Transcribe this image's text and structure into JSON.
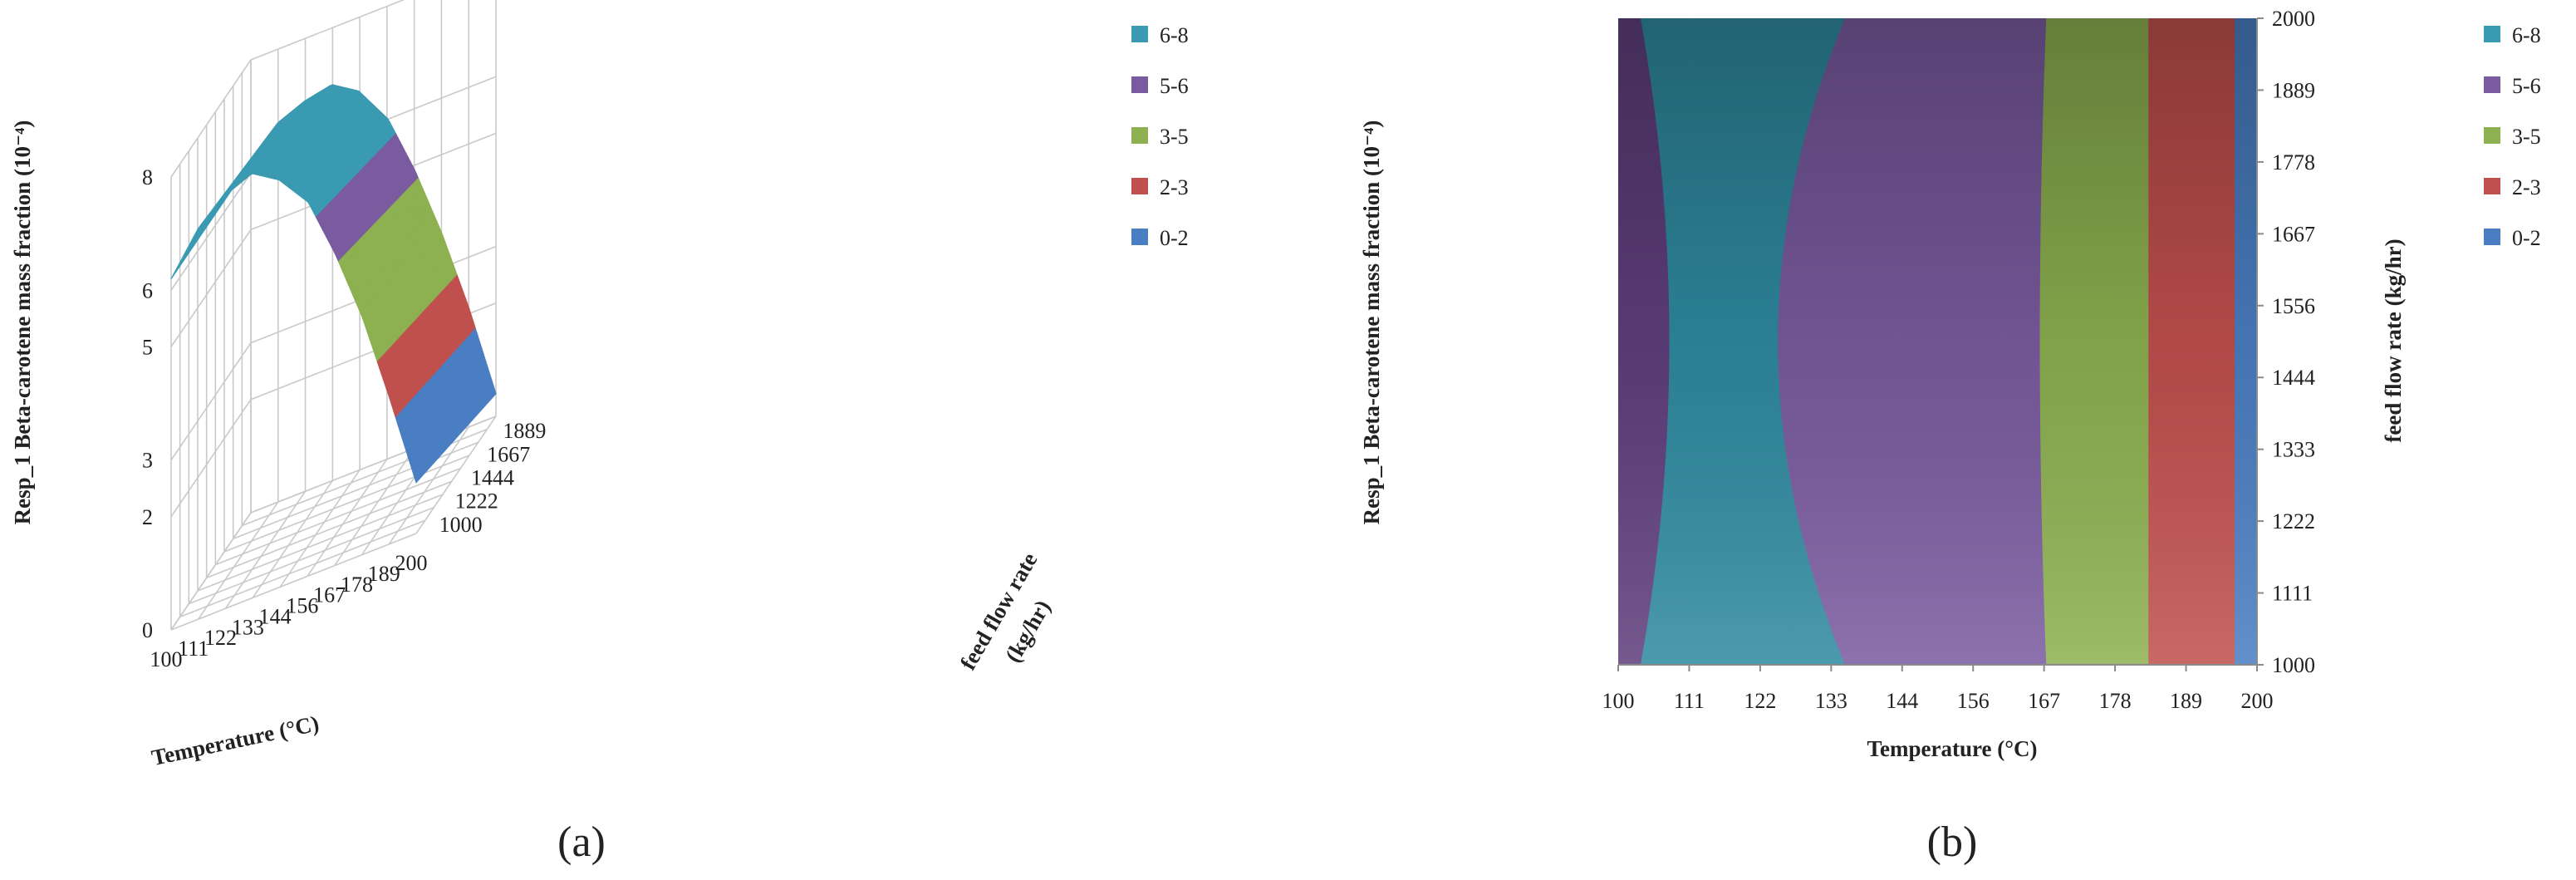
{
  "chart_data": [
    {
      "panel_label": "(a)",
      "type": "surface-3d",
      "title": "",
      "xlabel": "Temperature (°C)",
      "ylabel_lines": [
        "feed flow rate",
        "(kg/hr)"
      ],
      "zlabel": "Resp_1 Beta-carotene mass fraction (10⁻⁴)",
      "x_ticks": [
        "100",
        "111",
        "122",
        "133",
        "144",
        "156",
        "167",
        "178",
        "189",
        "200"
      ],
      "y_ticks": [
        "1000",
        "1222",
        "1444",
        "1667",
        "1889"
      ],
      "z_ticks": [
        "0",
        "2",
        "3",
        "5",
        "6",
        "8"
      ],
      "zlim": [
        0,
        8
      ],
      "grid": true,
      "legend_position": "right",
      "legend": [
        {
          "label": "6-8",
          "color": "#3a9ab2"
        },
        {
          "label": "5-6",
          "color": "#7a5ba0"
        },
        {
          "label": "3-5",
          "color": "#8db050"
        },
        {
          "label": "2-3",
          "color": "#c0504d"
        },
        {
          "label": "0-2",
          "color": "#4a7ec2"
        }
      ],
      "surface_profile": {
        "temperature": [
          100,
          111,
          122,
          133,
          144,
          156,
          167,
          178,
          189,
          200
        ],
        "value_at_feed_1000": [
          6.2,
          6.9,
          7.3,
          7.5,
          7.2,
          6.6,
          5.5,
          4.2,
          2.6,
          0.9
        ],
        "value_at_feed_2000": [
          6.2,
          6.7,
          6.9,
          7.0,
          6.7,
          6.0,
          4.9,
          3.6,
          2.1,
          0.4
        ]
      }
    },
    {
      "panel_label": "(b)",
      "type": "contour",
      "title": "",
      "xlabel": "Temperature (°C)",
      "ylabel": "feed flow rate (kg/hr)",
      "zlabel": "Resp_1 Beta-carotene mass fraction (10⁻⁴)",
      "x_ticks": [
        "100",
        "111",
        "122",
        "133",
        "144",
        "156",
        "167",
        "178",
        "189",
        "200"
      ],
      "y_ticks": [
        "1000",
        "1111",
        "1222",
        "1333",
        "1444",
        "1556",
        "1667",
        "1778",
        "1889",
        "2000"
      ],
      "xlim": [
        100,
        200
      ],
      "ylim": [
        1000,
        2000
      ],
      "legend_position": "right",
      "legend": [
        {
          "label": "6-8",
          "color": "#3a9ab2"
        },
        {
          "label": "5-6",
          "color": "#7a5ba0"
        },
        {
          "label": "3-5",
          "color": "#8db050"
        },
        {
          "label": "2-3",
          "color": "#c0504d"
        },
        {
          "label": "0-2",
          "color": "#4a7ec2"
        }
      ],
      "regions": [
        {
          "range": "5-6",
          "color": "#5f3f7c",
          "boundary_temperature": {
            "edge": 103.5,
            "middle": 108
          }
        },
        {
          "range": "6-8",
          "color": "#2f8aa0",
          "boundary_temperature": {
            "edge": 135.5,
            "middle": 125
          }
        },
        {
          "range": "5-6",
          "color": "#7a5ba0",
          "boundary_temperature": {
            "edge": 167,
            "middle": 166
          }
        },
        {
          "range": "3-5",
          "color": "#8db050",
          "boundary_temperature": {
            "edge": 183,
            "middle": 183
          }
        },
        {
          "range": "2-3",
          "color": "#c0504d",
          "boundary_temperature": {
            "edge": 196.5,
            "middle": 196.5
          }
        },
        {
          "range": "0-2",
          "color": "#4a7ec2",
          "boundary_temperature": {
            "edge": 200,
            "middle": 200
          }
        }
      ]
    }
  ]
}
